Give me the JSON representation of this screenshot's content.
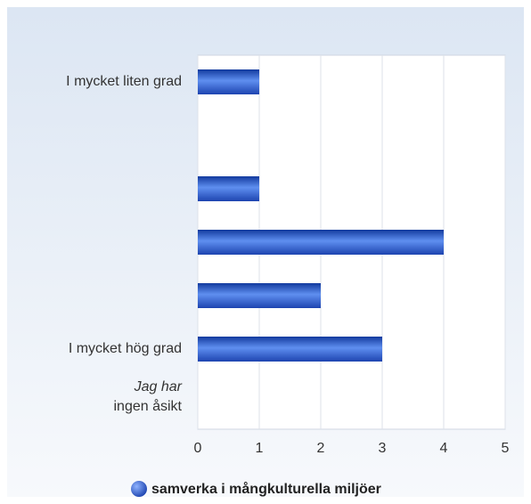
{
  "chart_data": {
    "type": "bar",
    "orientation": "horizontal",
    "categories": [
      "I mycket liten grad",
      null,
      null,
      null,
      null,
      "I mycket hög grad",
      [
        "Jag har",
        "ingen åsikt"
      ]
    ],
    "series": [
      {
        "name": "samverka i mångkulturella miljöer",
        "color": "#2a5ad6",
        "values": [
          1,
          0,
          1,
          4,
          2,
          3,
          0
        ]
      }
    ],
    "xlim": [
      0,
      5
    ],
    "xticks": [
      0,
      1,
      2,
      3,
      4,
      5
    ],
    "grid": true,
    "legend": "bottom"
  }
}
